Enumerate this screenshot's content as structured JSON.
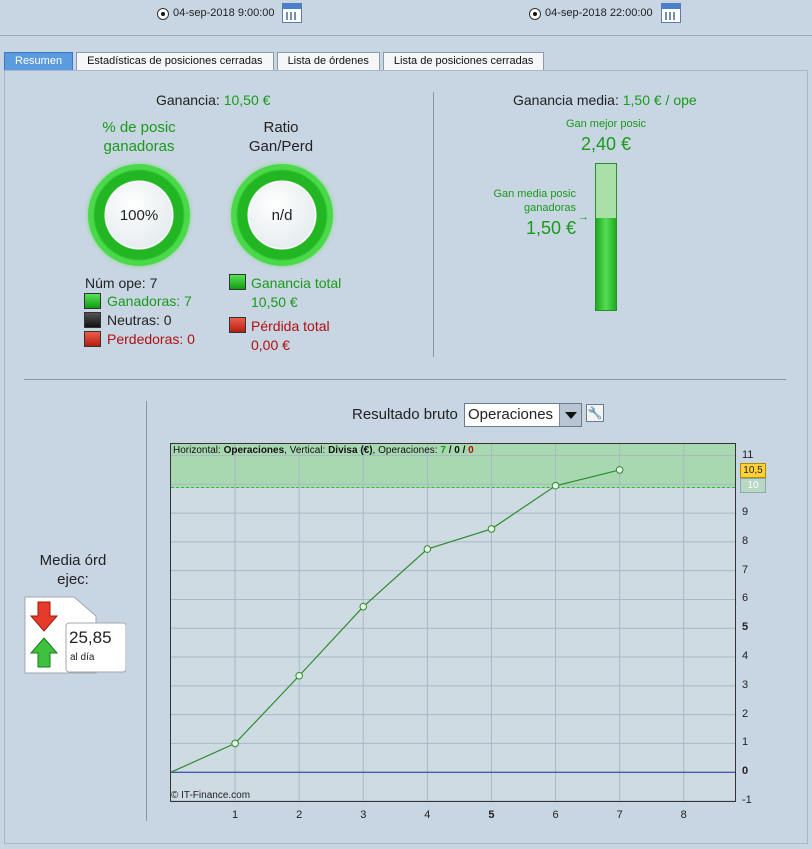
{
  "toolbar": {
    "date_start": "04-sep-2018 9:00:00",
    "date_end": "04-sep-2018 22:00:00"
  },
  "tabs": [
    {
      "label": "Resumen",
      "active": true
    },
    {
      "label": "Estadísticas de posiciones cerradas",
      "active": false
    },
    {
      "label": "Lista de órdenes",
      "active": false
    },
    {
      "label": "Lista de posiciones cerradas",
      "active": false
    }
  ],
  "summary": {
    "ganancia_label": "Ganancia:",
    "ganancia_value": "10,50 €",
    "pct_title_1": "% de posic",
    "pct_title_2": "ganadoras",
    "pct_value": "100%",
    "pct_fraction": 1.0,
    "ratio_title_1": "Ratio",
    "ratio_title_2": "Gan/Perd",
    "ratio_value": "n/d",
    "num_ope": "Núm ope: 7",
    "ganadoras": "Ganadoras: 7",
    "neutras": "Neutras: 0",
    "perdedoras": "Perdedoras: 0",
    "ganancia_total_label": "Ganancia total",
    "ganancia_total_value": "10,50 €",
    "perdida_total_label": "Pérdida total",
    "perdida_total_value": "0,00 €"
  },
  "average": {
    "label": "Ganancia media:",
    "value": "1,50 € / ope",
    "best_label": "Gan mejor posic",
    "best_value": "2,40 €",
    "avg_label_1": "Gan media posic",
    "avg_label_2": "ganadoras",
    "avg_value": "1,50 €",
    "avg_fraction_of_best": 0.625
  },
  "media_ord": {
    "label_1": "Media órd",
    "label_2": "ejec:",
    "value": "25,85",
    "unit": "al día"
  },
  "result": {
    "label": "Resultado bruto",
    "select_value": "Operaciones",
    "info_prefix": "Horizontal: ",
    "info_h": "Operaciones",
    "info_mid": ", Vertical: ",
    "info_v": "Divisa (€)",
    "info_suffix": ", Operaciones: ",
    "info_win": "7",
    "info_sep1": " / ",
    "info_neutral": "0",
    "info_sep2": " / ",
    "info_loss": "0",
    "copyright": "© IT-Finance.com",
    "marker_current": "10,5",
    "marker_prev": "10"
  },
  "chart_data": {
    "type": "line",
    "x": [
      0,
      1,
      2,
      3,
      4,
      5,
      6,
      7
    ],
    "series": [
      {
        "values": [
          0,
          1.0,
          3.35,
          5.75,
          7.75,
          8.45,
          9.95,
          10.5
        ]
      }
    ],
    "xlabel": "",
    "ylabel": "",
    "xlim": [
      0,
      8.8
    ],
    "ylim": [
      -1,
      11.4
    ],
    "x_ticks": [
      "1",
      "2",
      "3",
      "4",
      "5",
      "6",
      "7",
      "8"
    ],
    "y_ticks": [
      "11",
      "10",
      "9",
      "8",
      "7",
      "6",
      "5",
      "4",
      "3",
      "2",
      "1",
      "0",
      "-1"
    ],
    "grid": true,
    "colors": {
      "line": "#2e8b2e",
      "zero": "#2233aa"
    }
  }
}
